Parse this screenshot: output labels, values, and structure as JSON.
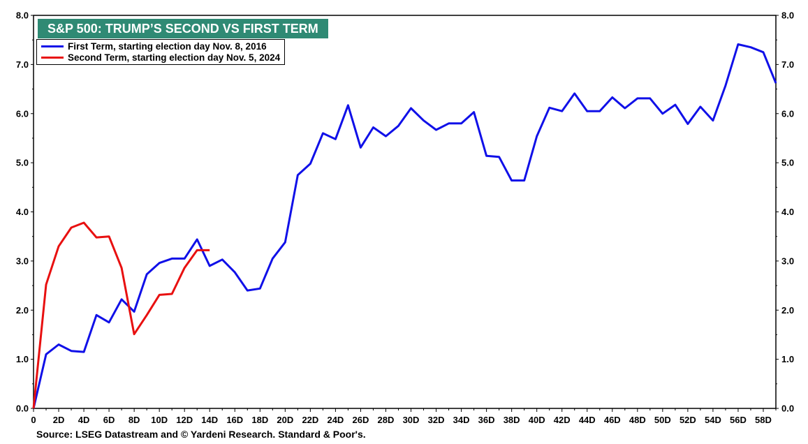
{
  "chart_data": {
    "type": "line",
    "title": "S&P 500: TRUMP’S SECOND VS FIRST TERM",
    "xlabel": "",
    "ylabel": "",
    "x_ticks": [
      "0",
      "2D",
      "4D",
      "6D",
      "8D",
      "10D",
      "12D",
      "14D",
      "16D",
      "18D",
      "20D",
      "22D",
      "24D",
      "26D",
      "28D",
      "30D",
      "32D",
      "34D",
      "36D",
      "38D",
      "40D",
      "42D",
      "44D",
      "46D",
      "48D",
      "50D",
      "52D",
      "54D",
      "56D",
      "58D"
    ],
    "xlim": [
      0,
      59
    ],
    "ylim": [
      0,
      8
    ],
    "y_ticks": [
      "0.0",
      "1.0",
      "2.0",
      "3.0",
      "4.0",
      "5.0",
      "6.0",
      "7.0",
      "8.0"
    ],
    "grid": false,
    "legend_position": "top-left",
    "series": [
      {
        "name": "First Term, starting election day Nov. 8, 2016",
        "color": "#1010e8",
        "x": [
          0,
          1,
          2,
          3,
          4,
          5,
          6,
          7,
          8,
          9,
          10,
          11,
          12,
          13,
          14,
          15,
          16,
          17,
          18,
          19,
          20,
          21,
          22,
          23,
          24,
          25,
          26,
          27,
          28,
          29,
          30,
          31,
          32,
          33,
          34,
          35,
          36,
          37,
          38,
          39,
          40,
          41,
          42,
          43,
          44,
          45,
          46,
          47,
          48,
          49,
          50,
          51,
          52,
          53,
          54,
          55,
          56,
          57,
          58,
          59
        ],
        "values": [
          0.0,
          1.1,
          1.3,
          1.17,
          1.15,
          1.9,
          1.75,
          2.22,
          1.97,
          2.73,
          2.96,
          3.05,
          3.05,
          3.44,
          2.9,
          3.03,
          2.77,
          2.4,
          2.44,
          3.05,
          3.38,
          4.75,
          4.98,
          5.6,
          5.48,
          6.17,
          5.31,
          5.72,
          5.54,
          5.75,
          6.11,
          5.86,
          5.67,
          5.8,
          5.8,
          6.03,
          5.14,
          5.12,
          4.64,
          4.64,
          5.54,
          6.12,
          6.05,
          6.41,
          6.05,
          6.05,
          6.33,
          6.11,
          6.31,
          6.31,
          6.0,
          6.18,
          5.79,
          6.14,
          5.86,
          6.57,
          7.41,
          7.35,
          7.25,
          6.62
        ]
      },
      {
        "name": "Second Term, starting election day Nov. 5, 2024",
        "color": "#e81010",
        "x": [
          0,
          1,
          2,
          3,
          4,
          5,
          6,
          7,
          8,
          9,
          10,
          11,
          12,
          13,
          14
        ],
        "values": [
          0.0,
          2.52,
          3.3,
          3.68,
          3.78,
          3.48,
          3.5,
          2.86,
          1.51,
          1.9,
          2.31,
          2.33,
          2.86,
          3.22,
          3.22
        ]
      }
    ]
  },
  "source": "Source: LSEG Datastream and © Yardeni Research. Standard & Poor's.",
  "colors": {
    "title_bg": "#2f8a74",
    "title_text": "#ffffff"
  }
}
